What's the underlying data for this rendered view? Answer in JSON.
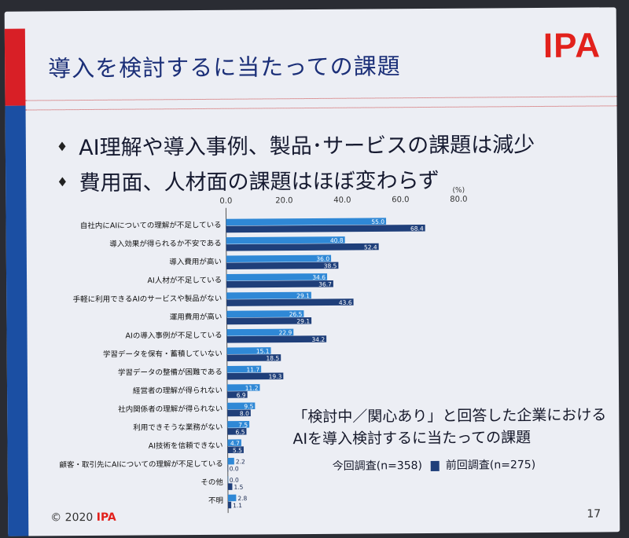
{
  "slide": {
    "title": "導入を検討するに当たっての課題",
    "logo_text": "IPA",
    "bullets": [
      "AI理解や導入事例、製品･サービスの課題は減少",
      "費用面、人材面の課題はほぼ変わらず"
    ],
    "caption_line1": "「検討中／関心あり」と回答した企業における",
    "caption_line2": "AIを導入検討するに当たっての課題",
    "legend_current": "今回調査(n=358)",
    "legend_previous": "前回調査(n=275)",
    "footer_copyright": "© 2020",
    "footer_org": "IPA",
    "page_number": "17",
    "bullet_mark": "♦"
  },
  "chart_data": {
    "type": "bar",
    "orientation": "horizontal",
    "unit": "(%)",
    "xlim": [
      0,
      80
    ],
    "ticks": [
      "0.0",
      "20.0",
      "40.0",
      "60.0",
      "80.0"
    ],
    "categories": [
      "自社内にAIについての理解が不足している",
      "導入効果が得られるか不安である",
      "導入費用が高い",
      "AI人材が不足している",
      "手軽に利用できるAIのサービスや製品がない",
      "運用費用が高い",
      "AIの導入事例が不足している",
      "学習データを保有・蓄積していない",
      "学習データの整備が困難である",
      "経営者の理解が得られない",
      "社内関係者の理解が得られない",
      "利用できそうな業務がない",
      "AI技術を信頼できない",
      "顧客・取引先にAIについての理解が不足している",
      "その他",
      "不明"
    ],
    "series": [
      {
        "name": "今回調査(n=358)",
        "color": "#2f88d6",
        "values": [
          55.0,
          40.8,
          36.0,
          34.6,
          29.1,
          26.5,
          22.9,
          15.1,
          11.7,
          11.2,
          9.5,
          7.5,
          4.7,
          2.2,
          0.0,
          2.8
        ]
      },
      {
        "name": "前回調査(n=275)",
        "color": "#1f3f7a",
        "values": [
          68.4,
          52.4,
          38.5,
          36.7,
          43.6,
          29.1,
          34.2,
          18.5,
          19.3,
          6.9,
          8.0,
          6.5,
          5.5,
          0.0,
          1.5,
          1.1
        ]
      }
    ]
  }
}
